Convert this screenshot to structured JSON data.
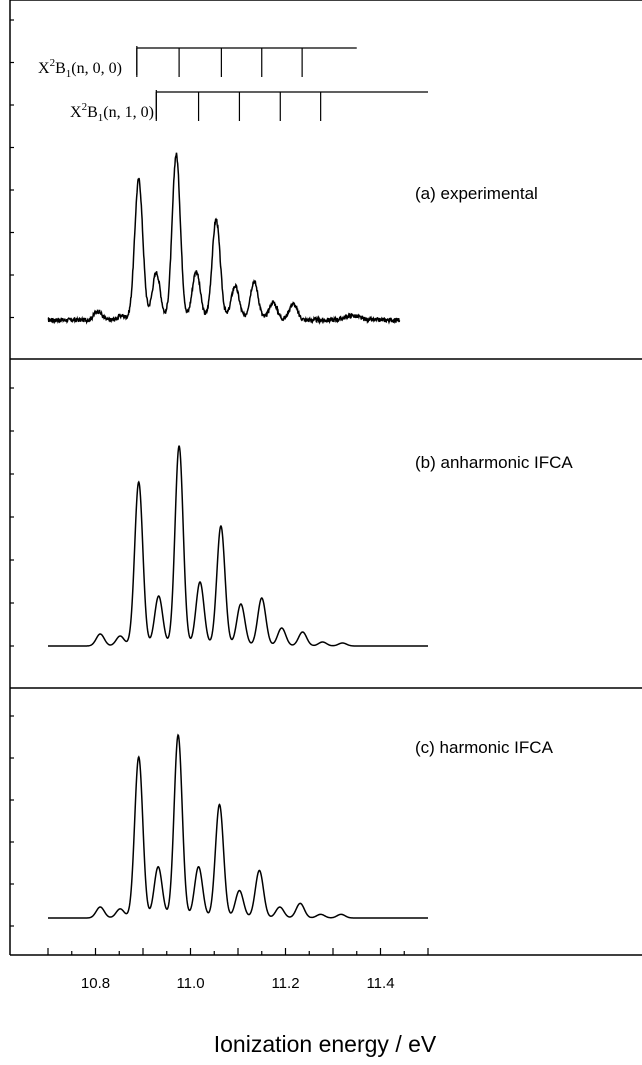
{
  "chart_data": {
    "type": "line",
    "x_range": [
      10.7,
      11.5
    ],
    "xlabel": "Ionization energy / eV",
    "x_ticks": [
      10.8,
      11.0,
      11.2,
      11.4
    ],
    "x_tick_labels": [
      "10.8",
      "11.0",
      "11.2",
      "11.4"
    ],
    "panels": [
      {
        "label": "(a) experimental",
        "ylim": [
          -0.1,
          1.1
        ],
        "baseline": 0,
        "noise": true,
        "x_end": 11.44,
        "peaks": [
          {
            "x": 10.805,
            "h": 0.06,
            "w": 0.008
          },
          {
            "x": 10.855,
            "h": 0.03,
            "w": 0.008
          },
          {
            "x": 10.891,
            "h": 0.95,
            "w": 0.0085
          },
          {
            "x": 10.928,
            "h": 0.32,
            "w": 0.0085
          },
          {
            "x": 10.97,
            "h": 1.12,
            "w": 0.0085
          },
          {
            "x": 11.012,
            "h": 0.33,
            "w": 0.0085
          },
          {
            "x": 11.054,
            "h": 0.68,
            "w": 0.0085
          },
          {
            "x": 11.094,
            "h": 0.23,
            "w": 0.0085
          },
          {
            "x": 11.134,
            "h": 0.26,
            "w": 0.0085
          },
          {
            "x": 11.174,
            "h": 0.12,
            "w": 0.0085
          },
          {
            "x": 11.216,
            "h": 0.11,
            "w": 0.0085
          },
          {
            "x": 11.34,
            "h": 0.03,
            "w": 0.015
          }
        ]
      },
      {
        "label": "(b) anharmonic IFCA",
        "ylim": [
          -0.1,
          1.1
        ],
        "baseline": 0,
        "noise": false,
        "x_end": 11.5,
        "peaks": [
          {
            "x": 10.81,
            "h": 0.06,
            "w": 0.0085
          },
          {
            "x": 10.852,
            "h": 0.05,
            "w": 0.0085
          },
          {
            "x": 10.891,
            "h": 0.82,
            "w": 0.0085
          },
          {
            "x": 10.933,
            "h": 0.25,
            "w": 0.0085
          },
          {
            "x": 10.976,
            "h": 1.0,
            "w": 0.0085
          },
          {
            "x": 11.02,
            "h": 0.32,
            "w": 0.0085
          },
          {
            "x": 11.064,
            "h": 0.6,
            "w": 0.0085
          },
          {
            "x": 11.106,
            "h": 0.21,
            "w": 0.0085
          },
          {
            "x": 11.15,
            "h": 0.24,
            "w": 0.0085
          },
          {
            "x": 11.192,
            "h": 0.09,
            "w": 0.0085
          },
          {
            "x": 11.236,
            "h": 0.07,
            "w": 0.0085
          },
          {
            "x": 11.278,
            "h": 0.02,
            "w": 0.0085
          },
          {
            "x": 11.32,
            "h": 0.015,
            "w": 0.0085
          }
        ]
      },
      {
        "label": "(c) harmonic IFCA",
        "ylim": [
          -0.1,
          1.1
        ],
        "baseline": 0,
        "noise": false,
        "x_end": 11.5,
        "peaks": [
          {
            "x": 10.81,
            "h": 0.06,
            "w": 0.0085
          },
          {
            "x": 10.852,
            "h": 0.05,
            "w": 0.0085
          },
          {
            "x": 10.891,
            "h": 0.88,
            "w": 0.0085
          },
          {
            "x": 10.932,
            "h": 0.28,
            "w": 0.0085
          },
          {
            "x": 10.974,
            "h": 1.0,
            "w": 0.0085
          },
          {
            "x": 11.017,
            "h": 0.28,
            "w": 0.0085
          },
          {
            "x": 11.061,
            "h": 0.62,
            "w": 0.0085
          },
          {
            "x": 11.103,
            "h": 0.15,
            "w": 0.0085
          },
          {
            "x": 11.145,
            "h": 0.26,
            "w": 0.0085
          },
          {
            "x": 11.188,
            "h": 0.06,
            "w": 0.0085
          },
          {
            "x": 11.231,
            "h": 0.08,
            "w": 0.0085
          },
          {
            "x": 11.274,
            "h": 0.02,
            "w": 0.0085
          },
          {
            "x": 11.317,
            "h": 0.02,
            "w": 0.0085
          }
        ]
      }
    ],
    "progressions": [
      {
        "label_main": "X",
        "label_sup": "2",
        "label_mid": "B",
        "label_sub": "1",
        "label_tail": "(n, 0, 0)",
        "start": 10.887,
        "end": 11.35,
        "markers": [
          10.887,
          10.976,
          11.065,
          11.15,
          11.235
        ]
      },
      {
        "label_main": "X",
        "label_sup": "2",
        "label_mid": "B",
        "label_sub": "1",
        "label_tail": "(n, 1, 0)",
        "start": 10.928,
        "end": 11.5,
        "markers": [
          10.928,
          11.017,
          11.103,
          11.189,
          11.274
        ]
      }
    ]
  }
}
